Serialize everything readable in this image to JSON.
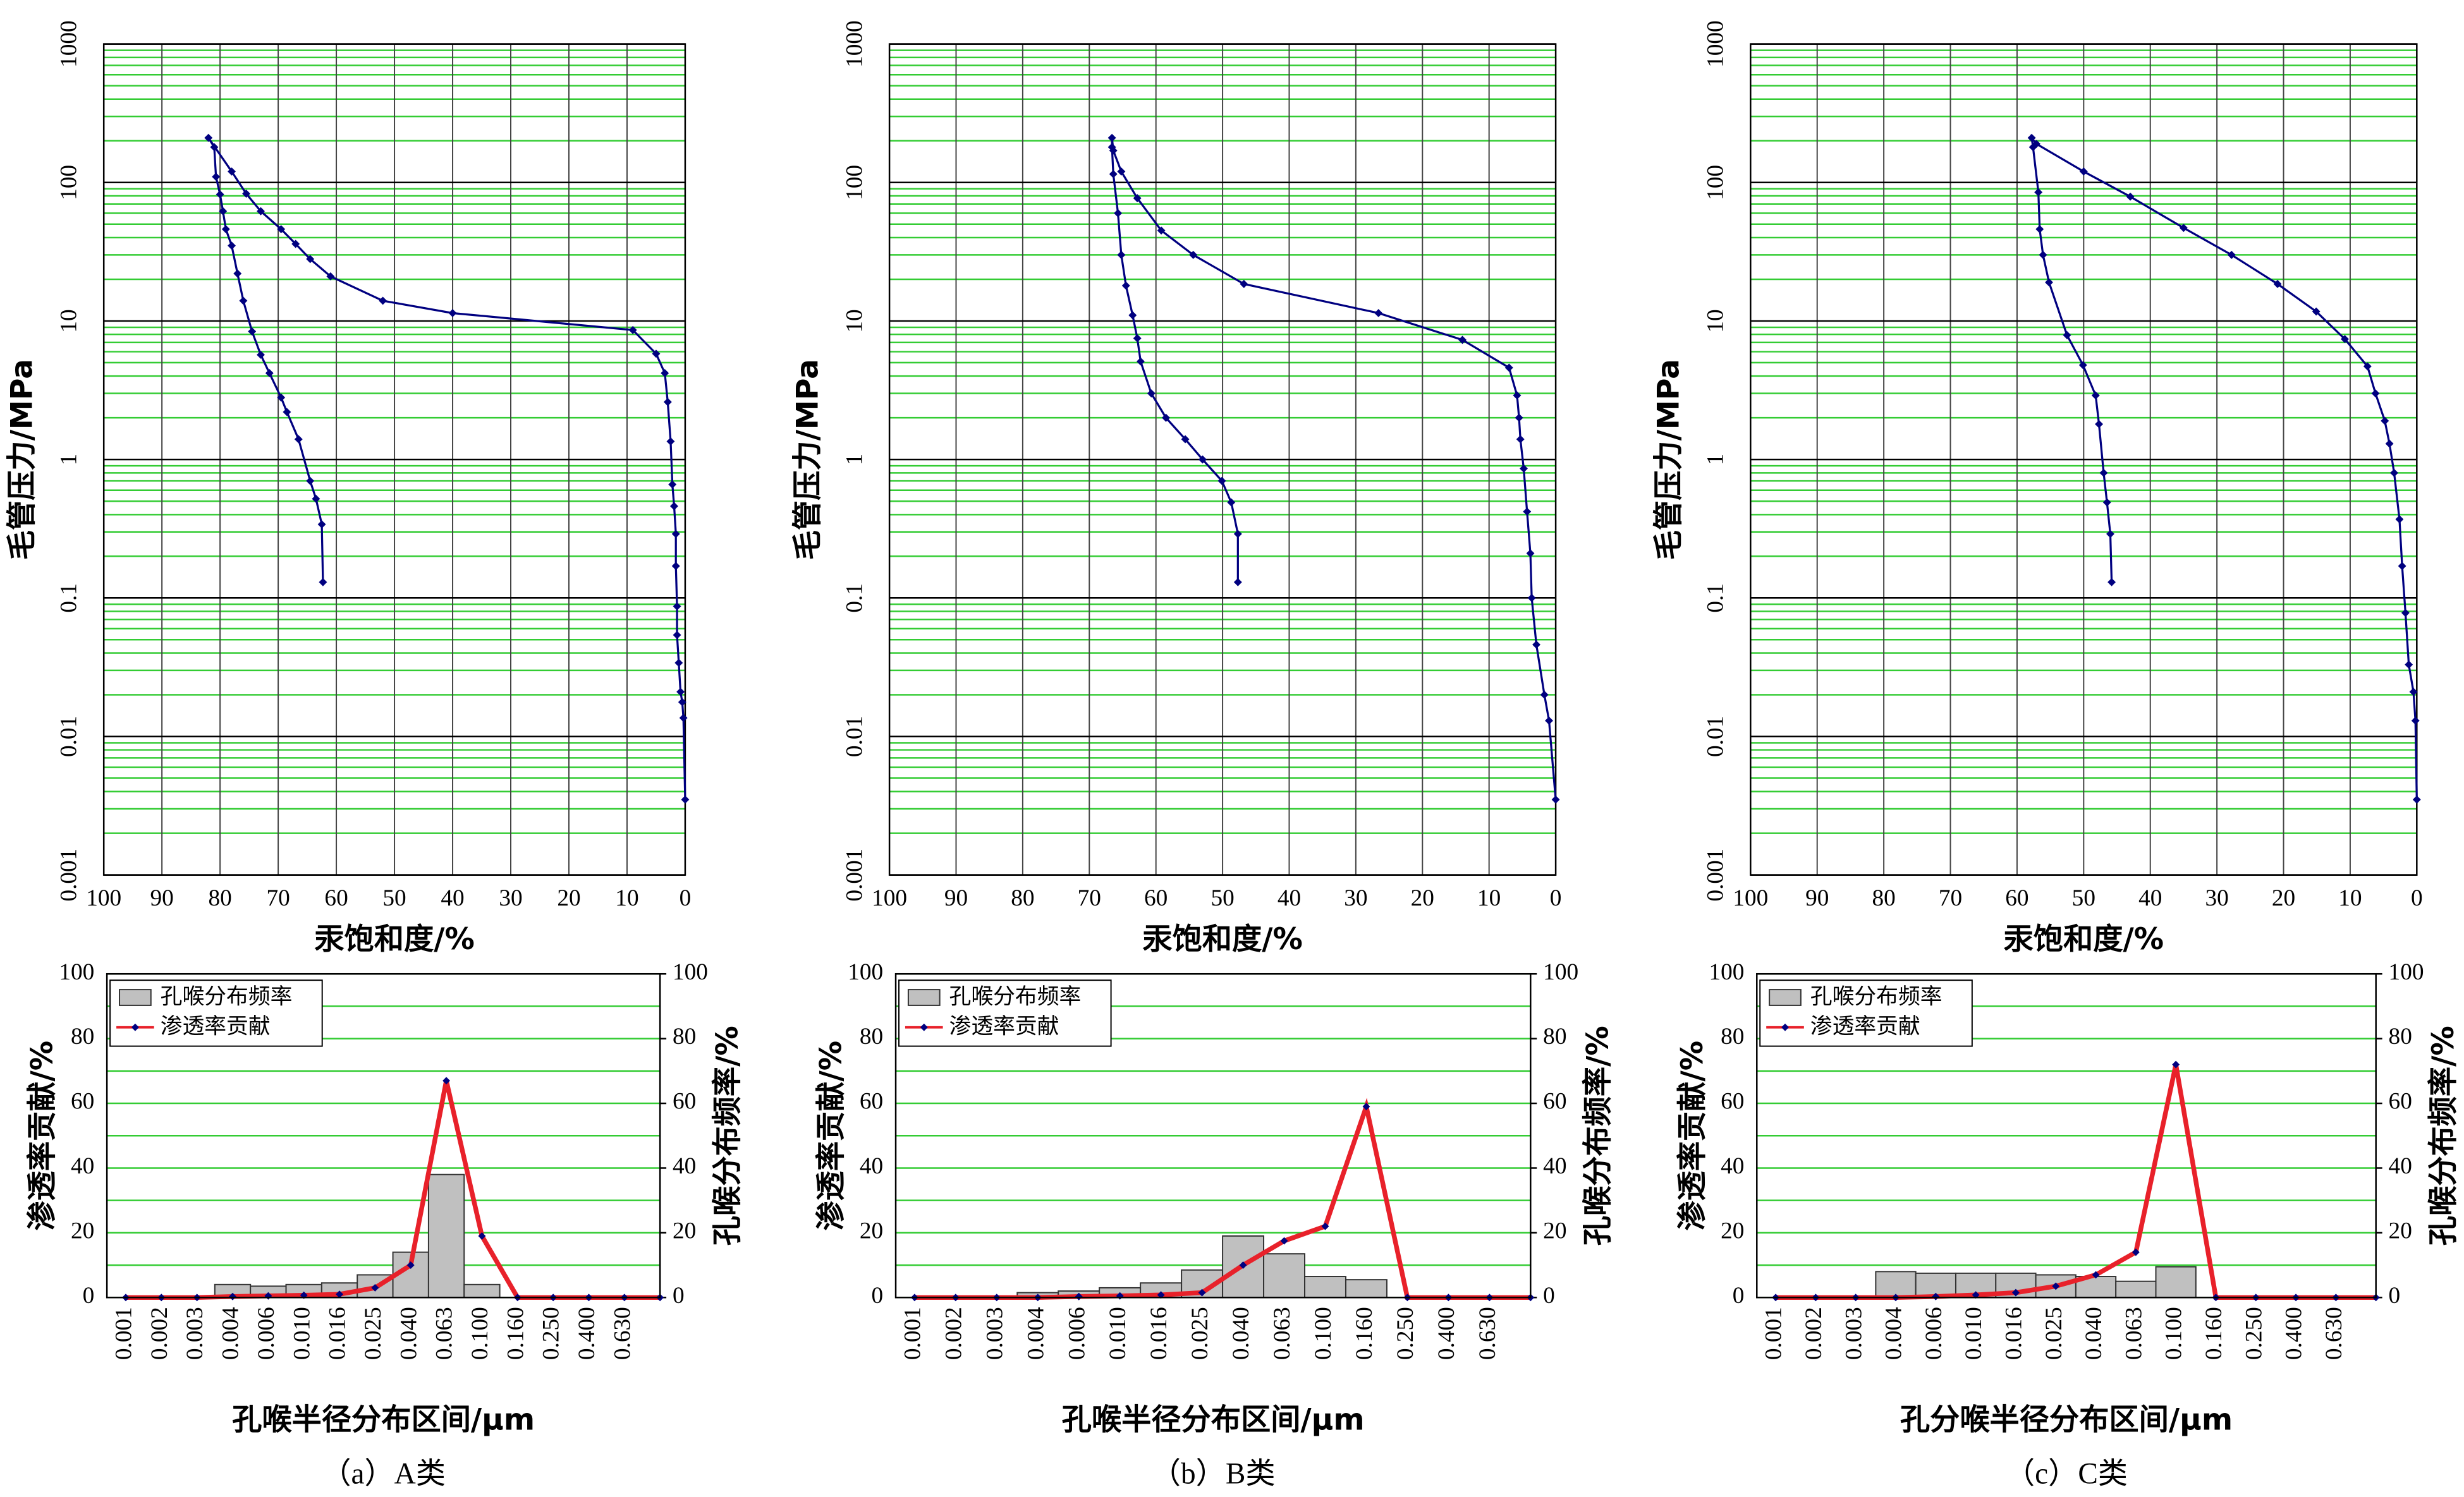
{
  "chart_data": [
    {
      "type": "line",
      "x_label": "汞饱和度/%",
      "y_label": "毛管压力/MPa",
      "xlim": [
        100,
        0
      ],
      "xticks": [
        100,
        90,
        80,
        70,
        60,
        50,
        40,
        30,
        20,
        10,
        0
      ],
      "ylim": [
        0.001,
        1000
      ],
      "yticks": [
        0.001,
        0.01,
        0.1,
        1,
        10,
        100,
        1000
      ],
      "log_y": true,
      "grid": true,
      "grid_color": "#000000",
      "minor_grid": true,
      "minor_grid_color": "#33cc33",
      "series": [
        {
          "color": "#000080",
          "x": [
            0,
            0.3,
            0.5,
            0.8,
            1.1,
            1.4,
            1.4,
            1.6,
            1.6,
            1.9,
            2.2,
            2.5,
            3,
            3.5,
            5,
            9,
            40,
            52,
            61,
            64.5,
            67,
            69.5,
            73,
            75.5,
            78,
            82,
            81,
            80.7,
            80,
            79.5,
            79,
            78,
            77,
            76,
            74.5,
            73,
            71.5,
            69.5,
            68.5,
            66.5,
            64.5,
            63.5,
            62.5,
            62.3
          ],
          "values": [
            0.0035,
            0.0136,
            0.0177,
            0.021,
            0.034,
            0.054,
            0.087,
            0.17,
            0.29,
            0.46,
            0.66,
            1.35,
            2.6,
            4.2,
            5.8,
            8.6,
            11.4,
            14,
            21,
            28,
            36,
            46,
            62,
            83,
            120,
            210,
            180,
            110,
            82,
            62,
            46,
            35,
            22,
            14,
            8.4,
            5.7,
            4.2,
            2.8,
            2.2,
            1.4,
            0.7,
            0.52,
            0.34,
            0.13
          ]
        }
      ]
    },
    {
      "type": "line",
      "x_label": "汞饱和度/%",
      "y_label": "毛管压力/MPa",
      "xlim": [
        100,
        0
      ],
      "xticks": [
        100,
        90,
        80,
        70,
        60,
        50,
        40,
        30,
        20,
        10,
        0
      ],
      "ylim": [
        0.001,
        1000
      ],
      "yticks": [
        0.001,
        0.01,
        0.1,
        1,
        10,
        100,
        1000
      ],
      "log_y": true,
      "grid": true,
      "grid_color": "#000000",
      "minor_grid": true,
      "minor_grid_color": "#33cc33",
      "series": [
        {
          "color": "#000080",
          "x": [
            0,
            1,
            1.7,
            2.9,
            3.6,
            3.8,
            4.3,
            4.8,
            5.3,
            5.5,
            5.8,
            7,
            14,
            26.6,
            46.8,
            54.4,
            59.2,
            62.8,
            65.2,
            66.4,
            66.6,
            66.6,
            66.4,
            65.7,
            65.2,
            64.5,
            63.5,
            62.8,
            62.3,
            60.7,
            58.5,
            55.6,
            53,
            50.1,
            48.7,
            47.7,
            47.7
          ],
          "values": [
            0.0035,
            0.013,
            0.02,
            0.046,
            0.1,
            0.21,
            0.42,
            0.86,
            1.4,
            2,
            2.9,
            4.6,
            7.3,
            11.4,
            18.5,
            30,
            45,
            77,
            120,
            170,
            210,
            180,
            115,
            60,
            30,
            18,
            11,
            7.5,
            5.1,
            3,
            2,
            1.4,
            1,
            0.7,
            0.49,
            0.29,
            0.13
          ]
        }
      ]
    },
    {
      "type": "line",
      "x_label": "汞饱和度/%",
      "y_label": "毛管压力/MPa",
      "xlim": [
        100,
        0
      ],
      "xticks": [
        100,
        90,
        80,
        70,
        60,
        50,
        40,
        30,
        20,
        10,
        0
      ],
      "ylim": [
        0.001,
        1000
      ],
      "yticks": [
        0.001,
        0.01,
        0.1,
        1,
        10,
        100,
        1000
      ],
      "log_y": true,
      "grid": true,
      "grid_color": "#000000",
      "minor_grid": true,
      "minor_grid_color": "#33cc33",
      "series": [
        {
          "color": "#000080",
          "x": [
            0,
            0.2,
            0.5,
            1.2,
            1.7,
            2.2,
            2.6,
            3.4,
            4.1,
            4.8,
            6.2,
            7.4,
            10.8,
            15.1,
            20.9,
            27.8,
            35,
            43,
            50,
            57.1,
            57.8,
            57.6,
            56.8,
            56.6,
            56.1,
            55.2,
            52.5,
            50.1,
            48.2,
            47.7,
            47,
            46.5,
            46,
            45.8
          ],
          "values": [
            0.0035,
            0.013,
            0.021,
            0.033,
            0.078,
            0.17,
            0.37,
            0.8,
            1.3,
            1.9,
            3,
            4.7,
            7.4,
            11.7,
            18.5,
            30,
            47,
            79,
            120,
            190,
            210,
            180,
            85,
            46,
            30,
            19,
            7.9,
            4.8,
            2.9,
            1.8,
            0.8,
            0.49,
            0.29,
            0.13
          ]
        }
      ]
    },
    {
      "type": "combo",
      "caption": "（a）A类",
      "x_label": "孔喉半径分布区间/μm",
      "y_label": "渗透率贡献/%",
      "y2_label": "孔喉分布频率/%",
      "categories": [
        "0.001",
        "0.002",
        "0.003",
        "0.004",
        "0.006",
        "0.010",
        "0.016",
        "0.025",
        "0.040",
        "0.063",
        "0.100",
        "0.160",
        "0.250",
        "0.400",
        "0.630",
        null
      ],
      "ylim": [
        0,
        100
      ],
      "yticks": [
        0,
        20,
        40,
        60,
        80,
        100
      ],
      "y2lim": [
        0,
        100
      ],
      "y2ticks": [
        0,
        20,
        40,
        60,
        80,
        100
      ],
      "grid": true,
      "minor_grid": true,
      "grid_color": "#33cc33",
      "legend": "upper left",
      "series": [
        {
          "name": "孔喉分布频率",
          "type": "bar",
          "axis": "y2",
          "color": "#c0c0c0",
          "values": [
            0,
            0,
            0,
            4,
            3.5,
            4,
            4.5,
            7,
            14,
            38,
            4,
            0,
            0,
            0,
            0,
            0
          ]
        },
        {
          "name": "渗透率贡献",
          "type": "line",
          "color": "#e8212a",
          "marker_color": "#000080",
          "values": [
            0,
            0,
            0,
            0.3,
            0.5,
            0.7,
            1,
            3,
            10,
            67,
            19,
            0,
            0,
            0,
            0,
            0
          ]
        }
      ]
    },
    {
      "type": "combo",
      "caption": "（b）B类",
      "x_label": "孔喉半径分布区间/μm",
      "y_label": "渗透率贡献/%",
      "y2_label": "孔喉分布频率/%",
      "categories": [
        "0.001",
        "0.002",
        "0.003",
        "0.004",
        "0.006",
        "0.010",
        "0.016",
        "0.025",
        "0.040",
        "0.063",
        "0.100",
        "0.160",
        "0.250",
        "0.400",
        "0.630",
        null
      ],
      "ylim": [
        0,
        100
      ],
      "yticks": [
        0,
        20,
        40,
        60,
        80,
        100
      ],
      "y2lim": [
        0,
        100
      ],
      "y2ticks": [
        0,
        20,
        40,
        60,
        80,
        100
      ],
      "grid": true,
      "minor_grid": true,
      "grid_color": "#33cc33",
      "legend": "upper left",
      "series": [
        {
          "name": "孔喉分布频率",
          "type": "bar",
          "axis": "y2",
          "color": "#c0c0c0",
          "values": [
            0,
            0,
            0,
            1.5,
            2,
            3,
            4.5,
            8.5,
            19,
            13.5,
            6.5,
            5.5,
            0,
            0,
            0,
            0
          ]
        },
        {
          "name": "渗透率贡献",
          "type": "line",
          "color": "#e8212a",
          "marker_color": "#000080",
          "values": [
            0,
            0,
            0,
            0,
            0.3,
            0.5,
            0.8,
            1.5,
            10,
            17.5,
            22,
            59,
            0,
            0,
            0,
            0
          ]
        }
      ]
    },
    {
      "type": "combo",
      "caption": "（c）C类",
      "x_label": "孔分喉半径分布区间/μm",
      "y_label": "渗透率贡献/%",
      "y2_label": "孔喉分布频率/%",
      "categories": [
        "0.001",
        "0.002",
        "0.003",
        "0.004",
        "0.006",
        "0.010",
        "0.016",
        "0.025",
        "0.040",
        "0.063",
        "0.100",
        "0.160",
        "0.250",
        "0.400",
        "0.630",
        null
      ],
      "ylim": [
        0,
        100
      ],
      "yticks": [
        0,
        20,
        40,
        60,
        80,
        100
      ],
      "y2lim": [
        0,
        100
      ],
      "y2ticks": [
        0,
        20,
        40,
        60,
        80,
        100
      ],
      "grid": true,
      "minor_grid": true,
      "grid_color": "#33cc33",
      "legend": "upper left",
      "series": [
        {
          "name": "孔喉分布频率",
          "type": "bar",
          "axis": "y2",
          "color": "#c0c0c0",
          "values": [
            0,
            0,
            0,
            8,
            7.5,
            7.5,
            7.5,
            7,
            6.5,
            5,
            9.5,
            0,
            0,
            0,
            0,
            0
          ]
        },
        {
          "name": "渗透率贡献",
          "type": "line",
          "color": "#e8212a",
          "marker_color": "#000080",
          "values": [
            0,
            0,
            0,
            0,
            0.3,
            0.8,
            1.5,
            3.5,
            7,
            14,
            72,
            0,
            0,
            0,
            0,
            0
          ]
        }
      ]
    }
  ]
}
